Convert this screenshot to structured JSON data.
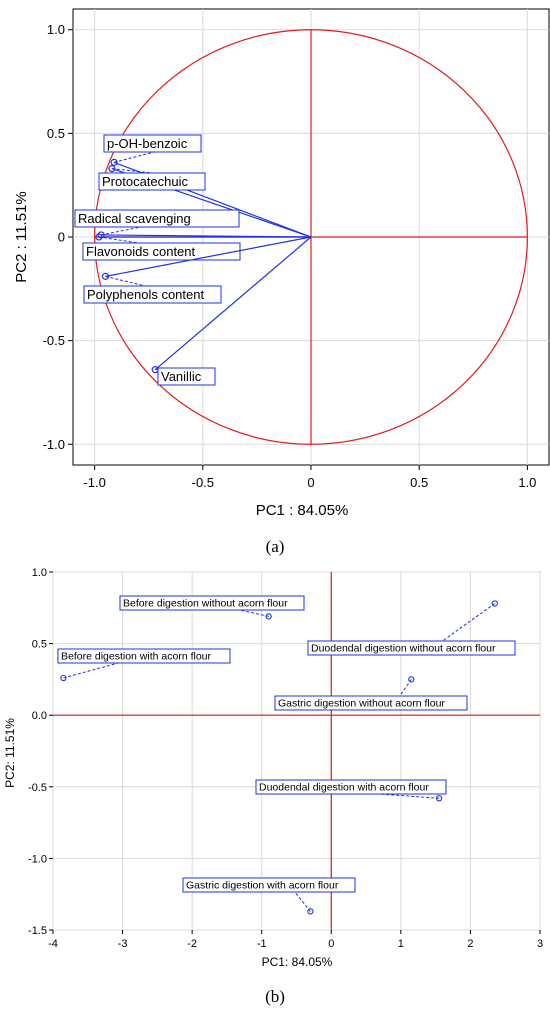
{
  "chart_data": [
    {
      "type": "scatter",
      "panel": "a",
      "xlabel": "PC1 : 84.05%",
      "ylabel": "PC2 : 11.51%",
      "xlim": [
        -1.1,
        1.1
      ],
      "ylim": [
        -1.1,
        1.1
      ],
      "x_ticks": [
        {
          "v": -1.0,
          "label": "-1.0"
        },
        {
          "v": -0.5,
          "label": "-0.5"
        },
        {
          "v": 0,
          "label": "0"
        },
        {
          "v": 0.5,
          "label": "0.5"
        },
        {
          "v": 1.0,
          "label": "1.0"
        }
      ],
      "y_ticks": [
        {
          "v": 1.0,
          "label": "1.0"
        },
        {
          "v": 0.5,
          "label": "0.5"
        },
        {
          "v": 0,
          "label": "0"
        },
        {
          "v": -0.5,
          "label": "-0.5"
        },
        {
          "v": -1.0,
          "label": "-1.0"
        }
      ],
      "unit_circle": true,
      "grid": true,
      "points": [
        {
          "name": "p-OH-benzoic",
          "x": -0.91,
          "y": 0.36
        },
        {
          "name": "Protocatechuic",
          "x": -0.92,
          "y": 0.33
        },
        {
          "name": "Radical scavenging",
          "x": -0.97,
          "y": 0.01
        },
        {
          "name": "Flavonoids content",
          "x": -0.98,
          "y": 0.0
        },
        {
          "name": "Polyphenols content",
          "x": -0.95,
          "y": -0.19
        },
        {
          "name": "Vanillic",
          "x": -0.72,
          "y": -0.64
        }
      ],
      "caption": "(a)"
    },
    {
      "type": "scatter",
      "panel": "b",
      "xlabel": "PC1: 84.05%",
      "ylabel": "PC2: 11.51%",
      "xlim": [
        -4,
        3
      ],
      "ylim": [
        -1.5,
        1.0
      ],
      "x_ticks": [
        {
          "v": -4,
          "label": "-4"
        },
        {
          "v": -3,
          "label": "-3"
        },
        {
          "v": -2,
          "label": "-2"
        },
        {
          "v": -1,
          "label": "-1"
        },
        {
          "v": 0,
          "label": "0"
        },
        {
          "v": 1,
          "label": "1"
        },
        {
          "v": 2,
          "label": "2"
        },
        {
          "v": 3,
          "label": "3"
        }
      ],
      "y_ticks": [
        {
          "v": 1.0,
          "label": "1.0"
        },
        {
          "v": 0.5,
          "label": "0.5"
        },
        {
          "v": 0.0,
          "label": "0.0"
        },
        {
          "v": -0.5,
          "label": "-0.5"
        },
        {
          "v": -1.0,
          "label": "-1.0"
        },
        {
          "v": -1.5,
          "label": "-1.5"
        }
      ],
      "grid": true,
      "points": [
        {
          "name": "Before digestion without acorn flour",
          "x": -0.9,
          "y": 0.69
        },
        {
          "name": "Before digestion with acorn flour",
          "x": -3.85,
          "y": 0.26
        },
        {
          "name": "Duodendal digestion without acorn flour",
          "x": 2.35,
          "y": 0.78
        },
        {
          "name": "Gastric digestion without acorn flour",
          "x": 1.15,
          "y": 0.25
        },
        {
          "name": "Duodendal digestion with acorn flour",
          "x": 1.55,
          "y": -0.58
        },
        {
          "name": "Gastric digestion with acorn flour",
          "x": -0.3,
          "y": -1.37
        }
      ],
      "caption": "(b)"
    }
  ]
}
